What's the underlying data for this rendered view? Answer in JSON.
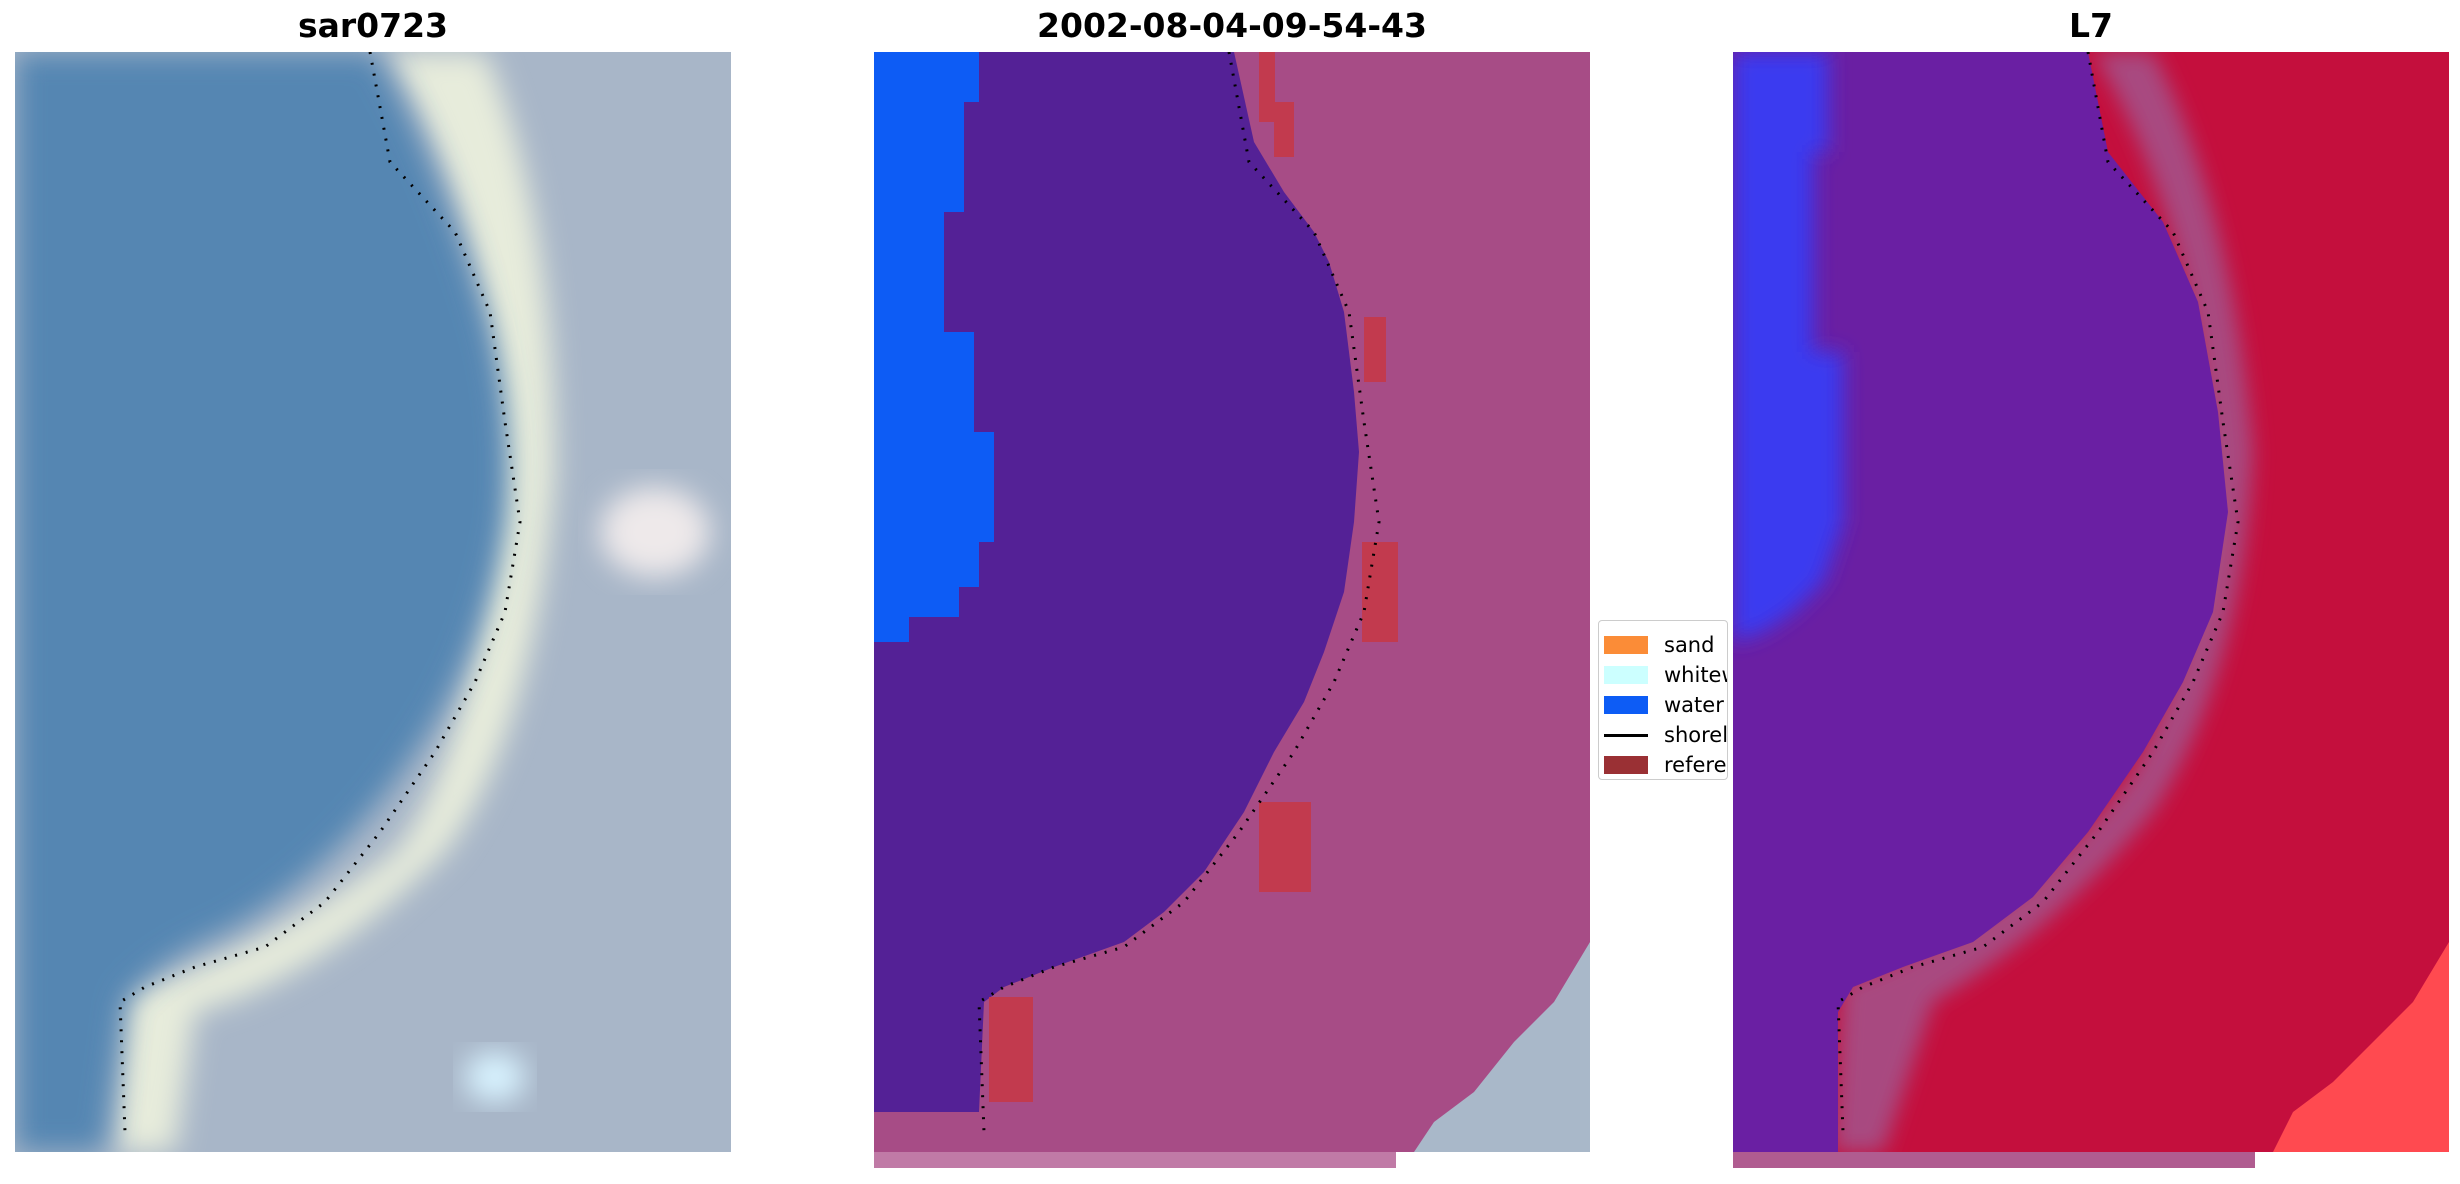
{
  "panels": [
    {
      "title": "sar0723"
    },
    {
      "title": "2002-08-04-09-54-43"
    },
    {
      "title": "L7"
    }
  ],
  "legend": {
    "items": [
      {
        "label": "sand",
        "color": "#fb8c37",
        "kind": "patch"
      },
      {
        "label": "whitew",
        "color": "#ccffff",
        "kind": "patch"
      },
      {
        "label": "water",
        "color": "#0d5cf5",
        "kind": "patch"
      },
      {
        "label": "shorel",
        "color": "#000000",
        "kind": "line"
      },
      {
        "label": "referer",
        "color": "#9a3034",
        "kind": "patch"
      }
    ]
  },
  "colors": {
    "water_rgb": "#5486b3",
    "beach_rgb": "#e6ecdc",
    "land_rgb": "#a9b8c9",
    "class_water": "#0d5cf5",
    "class_purple": "#542196",
    "class_land": "#a74c86",
    "class_reference": "#c23a4e",
    "l7_blue": "#3a3cf0",
    "l7_purple": "#6a1ea2",
    "l7_red": "#c20d3c",
    "l7_bright": "#ff4b50"
  }
}
